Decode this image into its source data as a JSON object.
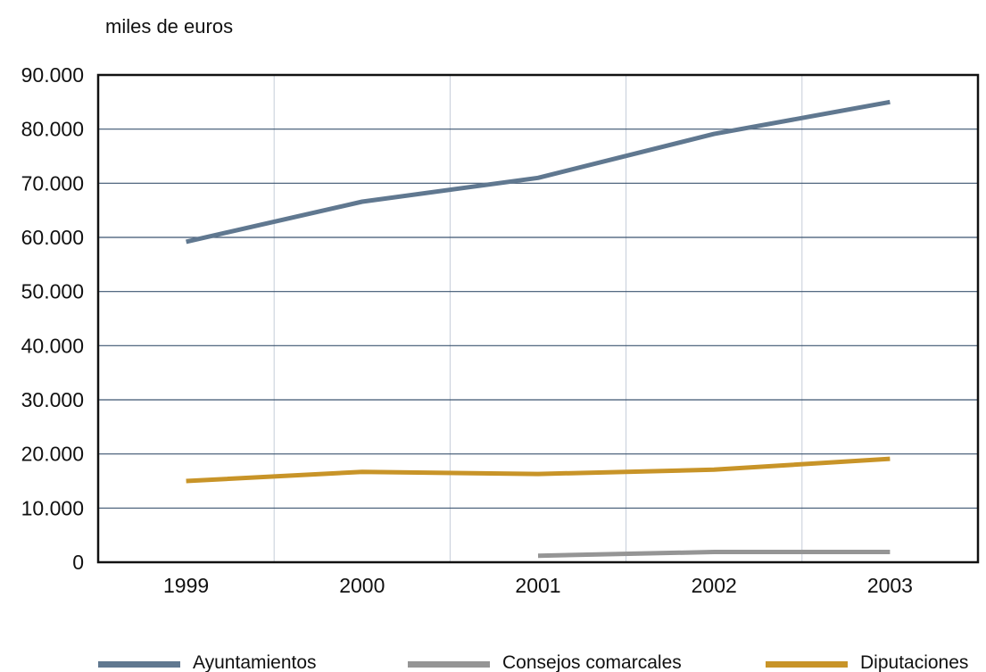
{
  "chart_data": {
    "type": "line",
    "ylabel": "miles de euros",
    "categories": [
      "1999",
      "2000",
      "2001",
      "2002",
      "2003"
    ],
    "ylim": [
      0,
      90000
    ],
    "yticks": [
      0,
      10000,
      20000,
      30000,
      40000,
      50000,
      60000,
      70000,
      80000,
      90000
    ],
    "ytick_labels": [
      "0",
      "10.000",
      "20.000",
      "30.000",
      "40.000",
      "50.000",
      "60.000",
      "70.000",
      "80.000",
      "90.000"
    ],
    "grid": true,
    "legend_position": "bottom",
    "series": [
      {
        "name": "Ayuntamientos",
        "color": "#607890",
        "values": [
          59200,
          66600,
          71000,
          79100,
          85000
        ]
      },
      {
        "name": "Consejos comarcales",
        "color": "#959595",
        "values": [
          null,
          null,
          1200,
          1900,
          1900
        ]
      },
      {
        "name": "Diputaciones",
        "color": "#c89428",
        "values": [
          15000,
          16700,
          16300,
          17100,
          19100
        ]
      }
    ]
  }
}
